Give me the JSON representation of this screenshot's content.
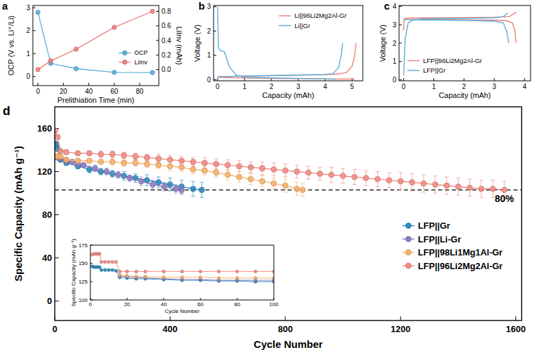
{
  "chart_data": [
    {
      "type": "line",
      "title": "a",
      "x_label": "Prelithiation Time (min)",
      "y_label": "OCP (V vs. Li⁺/Li)",
      "y2_label": "LiInv (mAh)",
      "xlim": [
        -4,
        95
      ],
      "xticks": [
        0,
        20,
        40,
        60,
        80
      ],
      "ylim": [
        -0.4,
        3.1
      ],
      "yticks": [
        0,
        1,
        2,
        3
      ],
      "y2lim": [
        -0.22,
        0.88
      ],
      "y2ticks": [
        {
          "value": 0,
          "label": "0.0"
        },
        0.2,
        0.4,
        0.6,
        0.8
      ],
      "legend": "center right",
      "grid": false,
      "series": [
        {
          "name": "OCP",
          "color": "#5aaed8",
          "marker": "circle",
          "x": [
            0,
            10,
            30,
            60,
            90
          ],
          "values": [
            2.8,
            0.57,
            0.34,
            0.18,
            0.17
          ]
        },
        {
          "name": "LiInv",
          "color": "#ee7f78",
          "marker": "circle",
          "axis": "y2",
          "x": [
            0,
            10,
            30,
            60,
            90
          ],
          "values": [
            0,
            0.12,
            0.28,
            0.58,
            0.8
          ]
        }
      ]
    },
    {
      "type": "line",
      "title": "b",
      "x_label": "Capacity (mAh)",
      "y_label": "Voltage (V)",
      "xlim": [
        -0.15,
        5.4
      ],
      "xticks": [
        0,
        1,
        2,
        3,
        4,
        5
      ],
      "ylim": [
        -0.05,
        3.05
      ],
      "yticks": [
        0,
        1,
        2,
        3
      ],
      "legend": "upper right",
      "grid": false,
      "series": [
        {
          "name": "Li||96Li2Mg2Al-Gr",
          "color": "#ee7f78",
          "x": [
            0,
            0.1,
            0.5,
            1,
            2,
            3,
            4,
            5,
            5.1,
            null,
            0,
            1,
            2,
            3,
            4,
            4.5,
            4.8,
            5.0,
            5.1,
            5.15
          ],
          "values": [
            0.13,
            0.1,
            0.08,
            0.07,
            0.05,
            0.04,
            0.03,
            0.02,
            0.01,
            null,
            0.12,
            0.14,
            0.16,
            0.18,
            0.2,
            0.23,
            0.3,
            0.55,
            1.0,
            1.5
          ]
        },
        {
          "name": "Li||Gr",
          "color": "#5aaed8",
          "x": [
            0,
            0.03,
            0.1,
            0.25,
            0.45,
            0.7,
            1,
            2,
            3,
            4,
            4.4,
            null,
            0,
            0.5,
            1,
            2,
            3,
            4,
            4.3,
            4.5,
            4.6,
            4.65
          ],
          "values": [
            3.0,
            1.3,
            1.2,
            1.15,
            0.5,
            0.18,
            0.1,
            0.07,
            0.05,
            0.03,
            0.01,
            null,
            0.1,
            0.13,
            0.15,
            0.17,
            0.19,
            0.21,
            0.25,
            0.5,
            1.0,
            1.5
          ]
        }
      ]
    },
    {
      "type": "line",
      "title": "c",
      "x_label": "Capacity (mAh)",
      "y_label": "Voltage (V)",
      "xlim": [
        -0.15,
        4.2
      ],
      "xticks": [
        0,
        1,
        2,
        3,
        4
      ],
      "ylim": [
        -0.05,
        4.05
      ],
      "yticks": [
        0,
        1,
        2,
        3,
        4
      ],
      "legend": "lower left",
      "grid": false,
      "series": [
        {
          "name": "LFP||96Li2Mg2Al-Gr",
          "color": "#ee7f78",
          "x": [
            0,
            0.02,
            0.1,
            0.5,
            1,
            2,
            3,
            3.5,
            3.65,
            3.72,
            null,
            0,
            0.05,
            0.5,
            1,
            2,
            3,
            3.4,
            3.6,
            3.68,
            3.72
          ],
          "values": [
            2.7,
            3.3,
            3.36,
            3.37,
            3.38,
            3.39,
            3.41,
            3.45,
            3.6,
            3.7,
            null,
            3.35,
            3.3,
            3.29,
            3.28,
            3.27,
            3.25,
            3.22,
            3.1,
            2.7,
            2.0
          ]
        },
        {
          "name": "LFP||Gr",
          "color": "#5aaed8",
          "x": [
            0,
            0.05,
            0.15,
            0.3,
            0.6,
            1,
            2,
            3,
            3.3,
            3.45,
            null,
            0,
            0.05,
            0.5,
            1,
            2,
            3,
            3.3,
            3.42,
            3.48
          ],
          "values": [
            0.25,
            2.2,
            3.1,
            3.25,
            3.32,
            3.33,
            3.35,
            3.38,
            3.45,
            3.65,
            null,
            3.3,
            3.28,
            3.27,
            3.26,
            3.24,
            3.2,
            3.1,
            2.6,
            2.0
          ]
        }
      ]
    },
    {
      "type": "line",
      "title": "d",
      "x_label": "Cycle Number",
      "y_label": "Specific Capacity (mAh g⁻¹)",
      "xlim": [
        0,
        1620
      ],
      "xticks": [
        0,
        400,
        800,
        1200,
        1600
      ],
      "ylim": [
        -18,
        180
      ],
      "yticks": [
        0,
        40,
        80,
        120,
        160
      ],
      "legend": "center right",
      "grid": false,
      "reference_line": 103,
      "annotations": [
        {
          "text": "80%",
          "x": 1560,
          "y": 92
        }
      ],
      "series": [
        {
          "name": "LFP||Gr",
          "color": "#2b8cbe",
          "marker": "circle",
          "x": [
            1,
            5,
            10,
            20,
            40,
            80,
            120,
            160,
            200,
            240,
            280,
            320,
            360,
            400,
            440,
            480,
            510
          ],
          "values": [
            146,
            145,
            141,
            131,
            128,
            125,
            122,
            120,
            118,
            116,
            114,
            112,
            110,
            108,
            106,
            104,
            103
          ],
          "error": [
            1,
            1,
            1,
            2,
            2,
            2,
            3,
            3,
            3,
            4,
            4,
            5,
            5,
            6,
            6,
            7,
            7
          ]
        },
        {
          "name": "LFP||Li-Gr",
          "color": "#8e7cc3",
          "marker": "circle",
          "x": [
            1,
            10,
            20,
            40,
            60,
            80,
            100,
            140,
            180,
            220,
            260,
            300,
            340,
            380,
            420,
            440
          ],
          "values": [
            133,
            133,
            132,
            130,
            129,
            127,
            126,
            123,
            120,
            117,
            114,
            111,
            108,
            106,
            104,
            103
          ],
          "error": [
            1,
            1,
            1,
            2,
            2,
            2,
            2,
            3,
            3,
            3,
            3,
            4,
            4,
            4,
            4,
            4
          ]
        },
        {
          "name": "LFP||98Li1Mg1Al-Gr",
          "color": "#f6b26b",
          "marker": "circle",
          "x": [
            1,
            10,
            20,
            40,
            80,
            120,
            160,
            200,
            240,
            280,
            320,
            360,
            400,
            440,
            480,
            520,
            560,
            600,
            640,
            680,
            720,
            760,
            800,
            840,
            860
          ],
          "values": [
            134,
            134,
            134,
            131,
            130,
            130,
            129,
            129,
            128,
            128,
            127,
            126,
            125,
            124,
            122,
            121,
            119,
            117,
            115,
            113,
            111,
            109,
            107,
            104,
            103
          ],
          "error": [
            1,
            1,
            1,
            2,
            2,
            2,
            2,
            3,
            3,
            3,
            3,
            3,
            4,
            4,
            4,
            4,
            4,
            5,
            5,
            5,
            5,
            5,
            6,
            6,
            6
          ]
        },
        {
          "name": "LFP||96Li2Mg2Al-Gr",
          "color": "#f28b82",
          "marker": "circle",
          "x": [
            1,
            10,
            20,
            40,
            80,
            120,
            160,
            200,
            240,
            280,
            320,
            360,
            400,
            440,
            480,
            520,
            560,
            600,
            640,
            680,
            720,
            760,
            800,
            840,
            880,
            920,
            960,
            1000,
            1040,
            1080,
            1120,
            1160,
            1200,
            1240,
            1280,
            1320,
            1360,
            1400,
            1440,
            1480,
            1520,
            1560
          ],
          "values": [
            158,
            152,
            139,
            138,
            137,
            137,
            136,
            136,
            135,
            134,
            133,
            132,
            131,
            130,
            129,
            128,
            127,
            126,
            125,
            124,
            123,
            122,
            121,
            120,
            119,
            118,
            117,
            116,
            115,
            114,
            113,
            112,
            111,
            110,
            109,
            108,
            107,
            106,
            105,
            104,
            104,
            103
          ],
          "error": [
            1,
            1,
            1,
            2,
            2,
            2,
            3,
            3,
            3,
            3,
            3,
            4,
            4,
            4,
            4,
            5,
            5,
            5,
            5,
            5,
            6,
            6,
            6,
            6,
            6,
            6,
            7,
            7,
            7,
            7,
            7,
            7,
            8,
            8,
            8,
            8,
            8,
            8,
            8,
            8,
            8,
            8
          ]
        }
      ]
    },
    {
      "type": "line",
      "x_label": "Cycle Number",
      "y_label": "Specific Capacity (mAh g⁻¹)",
      "xlim": [
        0,
        100
      ],
      "xticks": [
        0,
        20,
        40,
        60,
        80,
        100
      ],
      "ylim": [
        100,
        175
      ],
      "yticks": [
        100,
        125,
        150,
        175
      ],
      "grid": false,
      "series": [
        {
          "name": "LFP||Gr",
          "color": "#2b8cbe",
          "marker": "circle",
          "x": [
            1,
            2,
            3,
            4,
            5,
            6,
            8,
            10,
            12,
            14,
            16,
            20,
            25,
            30,
            40,
            50,
            60,
            70,
            80,
            90,
            100
          ],
          "values": [
            146,
            145,
            145,
            145,
            145,
            141,
            141,
            141,
            141,
            140,
            131,
            130,
            129,
            129,
            128,
            127,
            127,
            126,
            126,
            125,
            125
          ]
        },
        {
          "name": "LFP||Li-Gr",
          "color": "#8e7cc3",
          "marker": "circle",
          "x": [
            1,
            2,
            3,
            4,
            5,
            6,
            8,
            10,
            12,
            14,
            16,
            20,
            25,
            30,
            40,
            50,
            60,
            70,
            80,
            90,
            100
          ],
          "values": [
            null,
            null,
            null,
            null,
            null,
            null,
            null,
            null,
            null,
            null,
            133,
            132,
            131,
            130,
            129,
            128,
            128,
            127,
            127,
            127,
            127
          ]
        },
        {
          "name": "LFP||98Li1Mg1Al-Gr",
          "color": "#f6b26b",
          "marker": "circle",
          "x": [
            1,
            2,
            3,
            4,
            5,
            6,
            8,
            10,
            12,
            14,
            16,
            20,
            25,
            30,
            40,
            50,
            60,
            70,
            80,
            90,
            100
          ],
          "values": [
            null,
            null,
            null,
            null,
            null,
            null,
            null,
            null,
            null,
            null,
            134,
            133,
            132,
            132,
            131,
            131,
            131,
            130,
            130,
            130,
            130
          ]
        },
        {
          "name": "LFP||96Li2Mg2Al-Gr",
          "color": "#f28b82",
          "marker": "circle",
          "x": [
            1,
            2,
            3,
            4,
            5,
            6,
            8,
            10,
            12,
            14,
            16,
            20,
            25,
            30,
            40,
            50,
            60,
            70,
            80,
            90,
            100
          ],
          "values": [
            162,
            163,
            163,
            163,
            163,
            152,
            152,
            152,
            152,
            152,
            139,
            139,
            139,
            139,
            139,
            139,
            139,
            139,
            139,
            139,
            139
          ]
        }
      ]
    }
  ]
}
